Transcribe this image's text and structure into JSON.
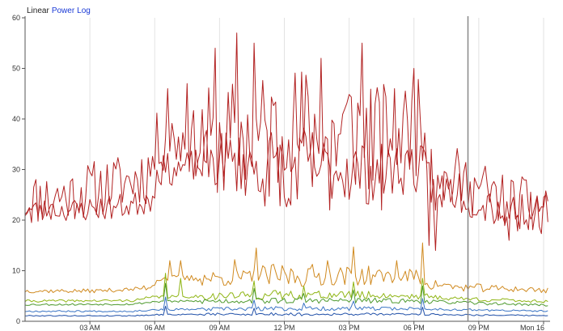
{
  "scale_toggles": [
    {
      "label": "Linear",
      "active": true
    },
    {
      "label": "Power",
      "active": false
    },
    {
      "label": "Log",
      "active": false
    }
  ],
  "colors": {
    "grid": "#e2e2e2",
    "axis": "#555555",
    "cursor": "#888888",
    "link": "#1a3ad6"
  },
  "chart_data": {
    "type": "line",
    "x_ticks": [
      "03 AM",
      "06 AM",
      "09 AM",
      "12 PM",
      "03 PM",
      "06 PM",
      "09 PM",
      "Mon 16"
    ],
    "x_tick_hours": [
      3,
      6,
      9,
      12,
      15,
      18,
      21,
      24
    ],
    "x_range_hours": [
      0,
      24.3
    ],
    "y_ticks": [
      "0",
      "10",
      "20",
      "30",
      "40",
      "50",
      "60"
    ],
    "ylim": [
      0,
      60
    ],
    "cursor_hour": 20.5,
    "grid": true,
    "series": [
      {
        "color": "#b22222",
        "profile": [
          [
            0,
            24
          ],
          [
            2,
            25
          ],
          [
            4,
            27
          ],
          [
            5,
            28
          ],
          [
            5.8,
            30
          ],
          [
            6.2,
            36
          ],
          [
            7,
            36
          ],
          [
            8,
            35
          ],
          [
            9,
            36
          ],
          [
            10,
            37
          ],
          [
            11,
            36
          ],
          [
            12,
            37
          ],
          [
            13,
            37
          ],
          [
            14,
            36
          ],
          [
            15,
            38
          ],
          [
            16,
            37
          ],
          [
            17,
            38
          ],
          [
            18,
            38
          ],
          [
            18.6,
            39
          ],
          [
            19,
            27
          ],
          [
            20,
            28
          ],
          [
            21,
            26
          ],
          [
            22,
            24
          ],
          [
            23,
            23
          ],
          [
            24.2,
            23
          ]
        ],
        "noise": [
          3.4,
          3.6,
          4.2,
          7,
          9,
          8,
          6,
          4,
          3.5
        ],
        "spikes": [
          [
            9.8,
            57
          ],
          [
            10.6,
            55
          ],
          [
            8.8,
            54
          ],
          [
            15.6,
            55
          ],
          [
            13.7,
            52
          ],
          [
            18.0,
            50
          ],
          [
            17.1,
            46
          ],
          [
            6.6,
            46
          ],
          [
            7.5,
            47
          ],
          [
            19.0,
            14
          ],
          [
            18.7,
            15
          ],
          [
            12.3,
            23
          ],
          [
            14.1,
            22
          ],
          [
            16.5,
            22
          ],
          [
            22.4,
            16
          ]
        ],
        "seed": 11
      },
      {
        "color": "#b22222",
        "profile": [
          [
            0,
            22
          ],
          [
            2,
            22
          ],
          [
            4,
            22.5
          ],
          [
            5,
            23
          ],
          [
            5.8,
            24.5
          ],
          [
            6.2,
            30
          ],
          [
            7,
            30
          ],
          [
            8,
            31
          ],
          [
            9,
            32
          ],
          [
            10,
            31
          ],
          [
            11,
            30
          ],
          [
            12,
            31
          ],
          [
            13,
            31
          ],
          [
            14,
            30
          ],
          [
            15,
            30
          ],
          [
            16,
            29
          ],
          [
            17,
            30
          ],
          [
            18,
            31
          ],
          [
            19,
            26
          ],
          [
            20,
            26
          ],
          [
            21,
            25
          ],
          [
            22,
            22
          ],
          [
            23,
            22
          ],
          [
            24.2,
            21
          ]
        ],
        "noise": [
          1.4,
          1.6,
          2,
          4,
          5,
          4,
          3.5,
          3,
          2.5
        ],
        "spikes": [],
        "seed": 23
      },
      {
        "color": "#d08a20",
        "profile": [
          [
            0,
            6
          ],
          [
            3,
            6
          ],
          [
            5,
            6.3
          ],
          [
            5.8,
            6.8
          ],
          [
            6.2,
            8.5
          ],
          [
            9,
            8.5
          ],
          [
            12,
            9
          ],
          [
            15,
            9
          ],
          [
            18,
            9
          ],
          [
            18.8,
            7.5
          ],
          [
            20,
            6.7
          ],
          [
            22,
            6.5
          ],
          [
            24.2,
            6.1
          ]
        ],
        "noise": [
          0.25,
          0.25,
          0.4,
          1,
          1.5,
          1.2,
          0.9,
          0.5,
          0.4
        ],
        "spikes": [
          [
            18.4,
            15.5
          ],
          [
            15.2,
            14.7
          ],
          [
            10.7,
            14.5
          ],
          [
            9.7,
            12.2
          ],
          [
            6.7,
            12
          ],
          [
            7.2,
            12
          ],
          [
            14.0,
            12
          ],
          [
            17.2,
            12
          ]
        ],
        "seed": 37
      },
      {
        "color": "#8fb514",
        "profile": [
          [
            0,
            4
          ],
          [
            5,
            4.1
          ],
          [
            6,
            4.8
          ],
          [
            9,
            5
          ],
          [
            12,
            5.2
          ],
          [
            15,
            5.2
          ],
          [
            18,
            5
          ],
          [
            20,
            4.5
          ],
          [
            24.2,
            3.9
          ]
        ],
        "noise": [
          0.15,
          0.15,
          0.2,
          0.5,
          0.6,
          0.5,
          0.4,
          0.3,
          0.2
        ],
        "spikes": [
          [
            6.5,
            9.5
          ],
          [
            7.2,
            8.5
          ],
          [
            10.6,
            8
          ],
          [
            18.4,
            8.5
          ],
          [
            15.2,
            7.8
          ],
          [
            12.9,
            7
          ]
        ],
        "seed": 41
      },
      {
        "color": "#4e9a2e",
        "profile": [
          [
            0,
            3.3
          ],
          [
            5,
            3.4
          ],
          [
            6,
            3.9
          ],
          [
            9,
            4
          ],
          [
            12,
            4.1
          ],
          [
            15,
            4.1
          ],
          [
            18,
            4
          ],
          [
            20,
            3.7
          ],
          [
            24.2,
            3.2
          ]
        ],
        "noise": [
          0.12,
          0.12,
          0.15,
          0.35,
          0.4,
          0.35,
          0.3,
          0.2,
          0.15
        ],
        "spikes": [
          [
            6.5,
            7.5
          ],
          [
            10.6,
            6.5
          ],
          [
            18.4,
            7
          ],
          [
            15.2,
            6.2
          ],
          [
            12.9,
            5.5
          ]
        ],
        "seed": 53
      },
      {
        "color": "#3a74c4",
        "profile": [
          [
            0,
            2
          ],
          [
            5,
            2
          ],
          [
            6,
            2.3
          ],
          [
            9,
            2.4
          ],
          [
            12,
            2.5
          ],
          [
            15,
            2.5
          ],
          [
            18,
            2.5
          ],
          [
            20,
            2.3
          ],
          [
            24.2,
            2
          ]
        ],
        "noise": [
          0.1,
          0.1,
          0.12,
          0.25,
          0.3,
          0.25,
          0.2,
          0.15,
          0.1
        ],
        "spikes": [
          [
            6.5,
            4.8
          ],
          [
            10.6,
            4.2
          ],
          [
            18.4,
            4.5
          ],
          [
            15.2,
            4
          ],
          [
            12.9,
            3.6
          ]
        ],
        "seed": 67
      },
      {
        "color": "#1f4fa8",
        "profile": [
          [
            0,
            1.1
          ],
          [
            5,
            1.1
          ],
          [
            6,
            1.3
          ],
          [
            9,
            1.4
          ],
          [
            12,
            1.4
          ],
          [
            15,
            1.4
          ],
          [
            18,
            1.4
          ],
          [
            20,
            1.3
          ],
          [
            24.2,
            1.1
          ]
        ],
        "noise": [
          0.06,
          0.06,
          0.08,
          0.15,
          0.2,
          0.15,
          0.12,
          0.1,
          0.08
        ],
        "spikes": [
          [
            6.5,
            3
          ],
          [
            10.6,
            2.6
          ],
          [
            18.4,
            2.8
          ]
        ],
        "seed": 79
      }
    ]
  }
}
